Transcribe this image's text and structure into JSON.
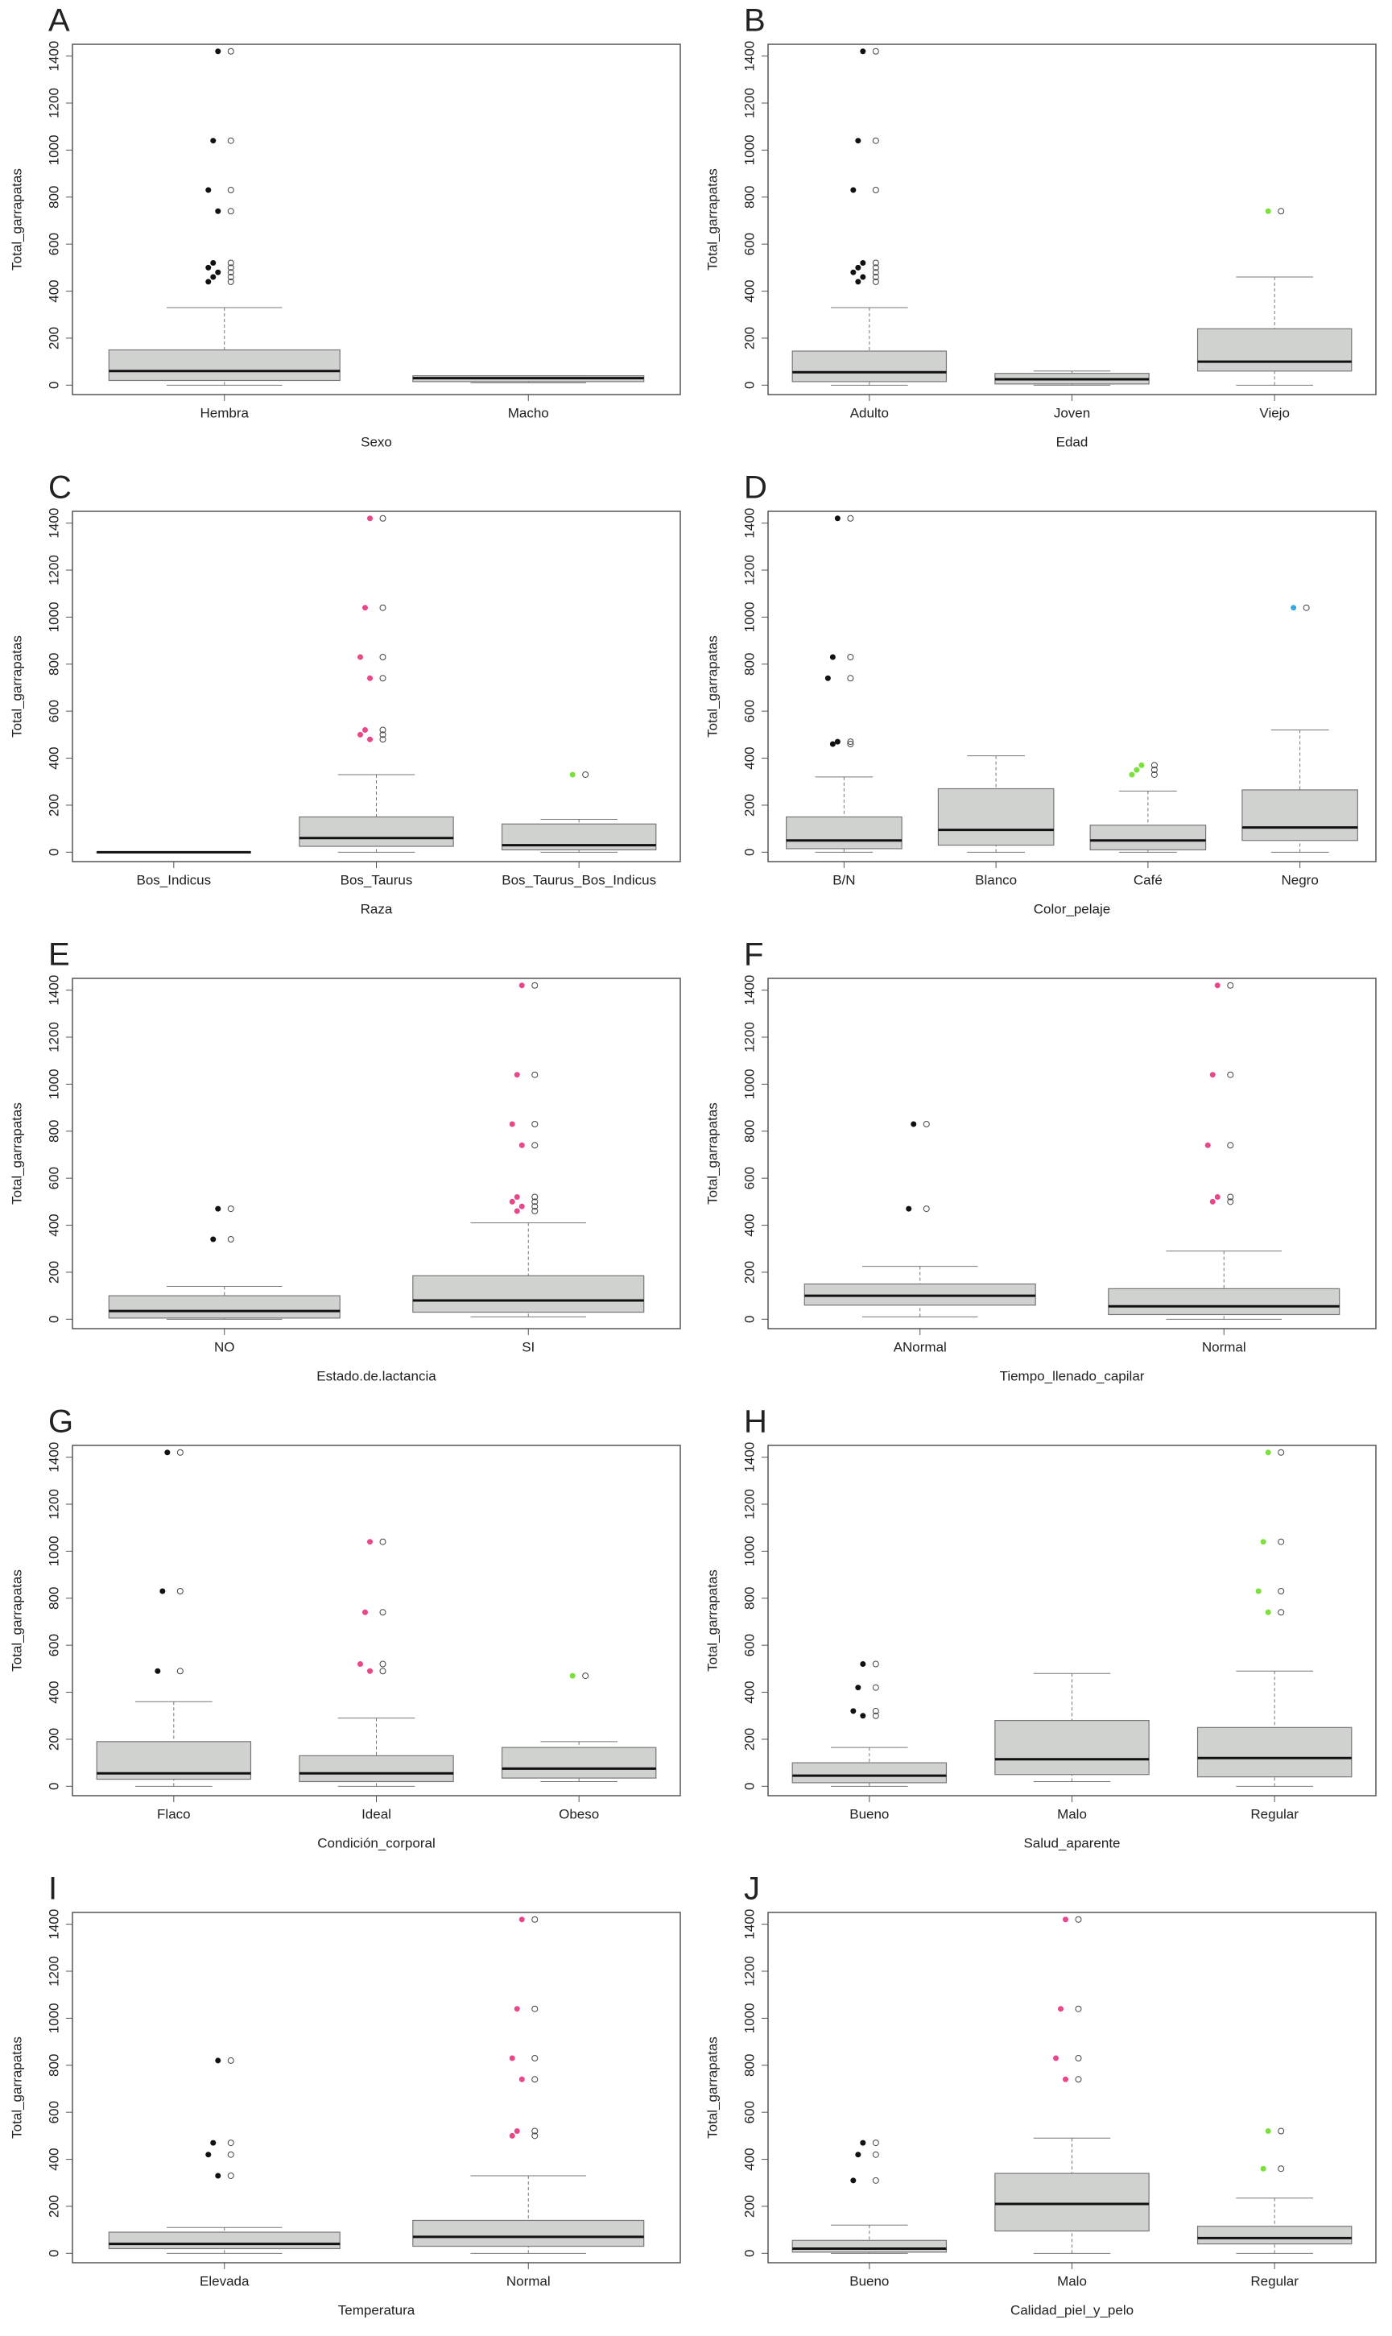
{
  "chart_data": [
    {
      "type": "box",
      "panel": "A",
      "ylabel": "Total_garrapatas",
      "xlabel": "Sexo",
      "categories": [
        "Hembra",
        "Macho"
      ],
      "colors": [
        "#111111",
        "#e8478a"
      ],
      "ylim": [
        -40,
        1450
      ],
      "yticks": [
        0,
        200,
        400,
        600,
        800,
        1000,
        1200,
        1400
      ],
      "boxes": [
        {
          "whislo": 0,
          "q1": 20,
          "med": 60,
          "q3": 150,
          "whishi": 330,
          "outliers": [
            1420,
            1040,
            830,
            740,
            520,
            500,
            480,
            460,
            440
          ]
        },
        {
          "whislo": 10,
          "q1": 15,
          "med": 30,
          "q3": 40,
          "whishi": 40,
          "outliers": []
        }
      ]
    },
    {
      "type": "box",
      "panel": "B",
      "ylabel": "Total_garrapatas",
      "xlabel": "Edad",
      "categories": [
        "Adulto",
        "Joven",
        "Viejo"
      ],
      "colors": [
        "#111111",
        "#e8478a",
        "#7be03a"
      ],
      "ylim": [
        -40,
        1450
      ],
      "yticks": [
        0,
        200,
        400,
        600,
        800,
        1000,
        1200,
        1400
      ],
      "boxes": [
        {
          "whislo": 0,
          "q1": 15,
          "med": 55,
          "q3": 145,
          "whishi": 330,
          "outliers": [
            1420,
            1040,
            830,
            520,
            500,
            480,
            460,
            440
          ]
        },
        {
          "whislo": 0,
          "q1": 5,
          "med": 25,
          "q3": 50,
          "whishi": 60,
          "outliers": []
        },
        {
          "whislo": 0,
          "q1": 60,
          "med": 100,
          "q3": 240,
          "whishi": 460,
          "outliers": [
            740
          ]
        }
      ]
    },
    {
      "type": "box",
      "panel": "C",
      "ylabel": "Total_garrapatas",
      "xlabel": "Raza",
      "categories": [
        "Bos_Indicus",
        "Bos_Taurus",
        "Bos_Taurus_Bos_Indicus"
      ],
      "colors": [
        "#111111",
        "#e8478a",
        "#7be03a"
      ],
      "ylim": [
        -40,
        1450
      ],
      "yticks": [
        0,
        200,
        400,
        600,
        800,
        1000,
        1200,
        1400
      ],
      "boxes": [
        {
          "whislo": 0,
          "q1": 0,
          "med": 0,
          "q3": 0,
          "whishi": 0,
          "outliers": []
        },
        {
          "whislo": 0,
          "q1": 25,
          "med": 60,
          "q3": 150,
          "whishi": 330,
          "outliers": [
            1420,
            1040,
            830,
            740,
            520,
            500,
            480
          ]
        },
        {
          "whislo": 0,
          "q1": 10,
          "med": 30,
          "q3": 120,
          "whishi": 140,
          "outliers": [
            330
          ]
        }
      ]
    },
    {
      "type": "box",
      "panel": "D",
      "ylabel": "Total_garrapatas",
      "xlabel": "Color_pelaje",
      "categories": [
        "B/N",
        "Blanco",
        "Café",
        "Negro"
      ],
      "colors": [
        "#111111",
        "#e8478a",
        "#7be03a",
        "#3aa8e0"
      ],
      "ylim": [
        -40,
        1450
      ],
      "yticks": [
        0,
        200,
        400,
        600,
        800,
        1000,
        1200,
        1400
      ],
      "boxes": [
        {
          "whislo": 0,
          "q1": 15,
          "med": 50,
          "q3": 150,
          "whishi": 320,
          "outliers": [
            1420,
            830,
            740,
            470,
            460
          ]
        },
        {
          "whislo": 0,
          "q1": 30,
          "med": 95,
          "q3": 270,
          "whishi": 410,
          "outliers": []
        },
        {
          "whislo": 0,
          "q1": 10,
          "med": 50,
          "q3": 115,
          "whishi": 260,
          "outliers": [
            370,
            350,
            330
          ]
        },
        {
          "whislo": 0,
          "q1": 50,
          "med": 105,
          "q3": 265,
          "whishi": 520,
          "outliers": [
            1040
          ]
        }
      ]
    },
    {
      "type": "box",
      "panel": "E",
      "ylabel": "Total_garrapatas",
      "xlabel": "Estado.de.lactancia",
      "categories": [
        "NO",
        "SI"
      ],
      "colors": [
        "#111111",
        "#e8478a"
      ],
      "ylim": [
        -40,
        1450
      ],
      "yticks": [
        0,
        200,
        400,
        600,
        800,
        1000,
        1200,
        1400
      ],
      "boxes": [
        {
          "whislo": 0,
          "q1": 5,
          "med": 35,
          "q3": 100,
          "whishi": 140,
          "outliers": [
            470,
            340
          ]
        },
        {
          "whislo": 10,
          "q1": 30,
          "med": 80,
          "q3": 185,
          "whishi": 410,
          "outliers": [
            1420,
            1040,
            830,
            740,
            520,
            500,
            480,
            460
          ]
        }
      ]
    },
    {
      "type": "box",
      "panel": "F",
      "ylabel": "Total_garrapatas",
      "xlabel": "Tiempo_llenado_capilar",
      "categories": [
        "ANormal",
        "Normal"
      ],
      "colors": [
        "#111111",
        "#e8478a"
      ],
      "ylim": [
        -40,
        1450
      ],
      "yticks": [
        0,
        200,
        400,
        600,
        800,
        1000,
        1200,
        1400
      ],
      "boxes": [
        {
          "whislo": 10,
          "q1": 60,
          "med": 100,
          "q3": 150,
          "whishi": 225,
          "outliers": [
            830,
            470
          ]
        },
        {
          "whislo": 0,
          "q1": 20,
          "med": 55,
          "q3": 130,
          "whishi": 290,
          "outliers": [
            1420,
            1040,
            740,
            520,
            500
          ]
        }
      ]
    },
    {
      "type": "box",
      "panel": "G",
      "ylabel": "Total_garrapatas",
      "xlabel": "Condición_corporal",
      "categories": [
        "Flaco",
        "Ideal",
        "Obeso"
      ],
      "colors": [
        "#111111",
        "#e8478a",
        "#7be03a"
      ],
      "ylim": [
        -40,
        1450
      ],
      "yticks": [
        0,
        200,
        400,
        600,
        800,
        1000,
        1200,
        1400
      ],
      "boxes": [
        {
          "whislo": 0,
          "q1": 30,
          "med": 55,
          "q3": 190,
          "whishi": 360,
          "outliers": [
            1420,
            830,
            490
          ]
        },
        {
          "whislo": 0,
          "q1": 20,
          "med": 55,
          "q3": 130,
          "whishi": 290,
          "outliers": [
            1040,
            740,
            520,
            490
          ]
        },
        {
          "whislo": 20,
          "q1": 35,
          "med": 75,
          "q3": 165,
          "whishi": 190,
          "outliers": [
            470
          ]
        }
      ]
    },
    {
      "type": "box",
      "panel": "H",
      "ylabel": "Total_garrapatas",
      "xlabel": "Salud_aparente",
      "categories": [
        "Bueno",
        "Malo",
        "Regular"
      ],
      "colors": [
        "#111111",
        "#e8478a",
        "#7be03a"
      ],
      "ylim": [
        -40,
        1450
      ],
      "yticks": [
        0,
        200,
        400,
        600,
        800,
        1000,
        1200,
        1400
      ],
      "boxes": [
        {
          "whislo": 0,
          "q1": 15,
          "med": 45,
          "q3": 100,
          "whishi": 165,
          "outliers": [
            520,
            420,
            320,
            300
          ]
        },
        {
          "whislo": 20,
          "q1": 50,
          "med": 115,
          "q3": 280,
          "whishi": 480,
          "outliers": []
        },
        {
          "whislo": 0,
          "q1": 40,
          "med": 120,
          "q3": 250,
          "whishi": 490,
          "outliers": [
            1420,
            1040,
            830,
            740
          ]
        }
      ]
    },
    {
      "type": "box",
      "panel": "I",
      "ylabel": "Total_garrapatas",
      "xlabel": "Temperatura",
      "categories": [
        "Elevada",
        "Normal"
      ],
      "colors": [
        "#111111",
        "#e8478a"
      ],
      "ylim": [
        -40,
        1450
      ],
      "yticks": [
        0,
        200,
        400,
        600,
        800,
        1000,
        1200,
        1400
      ],
      "boxes": [
        {
          "whislo": 0,
          "q1": 20,
          "med": 40,
          "q3": 90,
          "whishi": 110,
          "outliers": [
            820,
            470,
            420,
            330
          ]
        },
        {
          "whislo": 0,
          "q1": 30,
          "med": 70,
          "q3": 140,
          "whishi": 330,
          "outliers": [
            1420,
            1040,
            830,
            740,
            520,
            500
          ]
        }
      ]
    },
    {
      "type": "box",
      "panel": "J",
      "ylabel": "Total_garrapatas",
      "xlabel": "Calidad_piel_y_pelo",
      "categories": [
        "Bueno",
        "Malo",
        "Regular"
      ],
      "colors": [
        "#111111",
        "#e8478a",
        "#7be03a"
      ],
      "ylim": [
        -40,
        1450
      ],
      "yticks": [
        0,
        200,
        400,
        600,
        800,
        1000,
        1200,
        1400
      ],
      "boxes": [
        {
          "whislo": 0,
          "q1": 5,
          "med": 20,
          "q3": 55,
          "whishi": 120,
          "outliers": [
            470,
            420,
            310
          ]
        },
        {
          "whislo": 0,
          "q1": 95,
          "med": 210,
          "q3": 340,
          "whishi": 490,
          "outliers": [
            1420,
            1040,
            830,
            740
          ]
        },
        {
          "whislo": 0,
          "q1": 40,
          "med": 65,
          "q3": 115,
          "whishi": 235,
          "outliers": [
            520,
            360
          ]
        }
      ]
    }
  ]
}
